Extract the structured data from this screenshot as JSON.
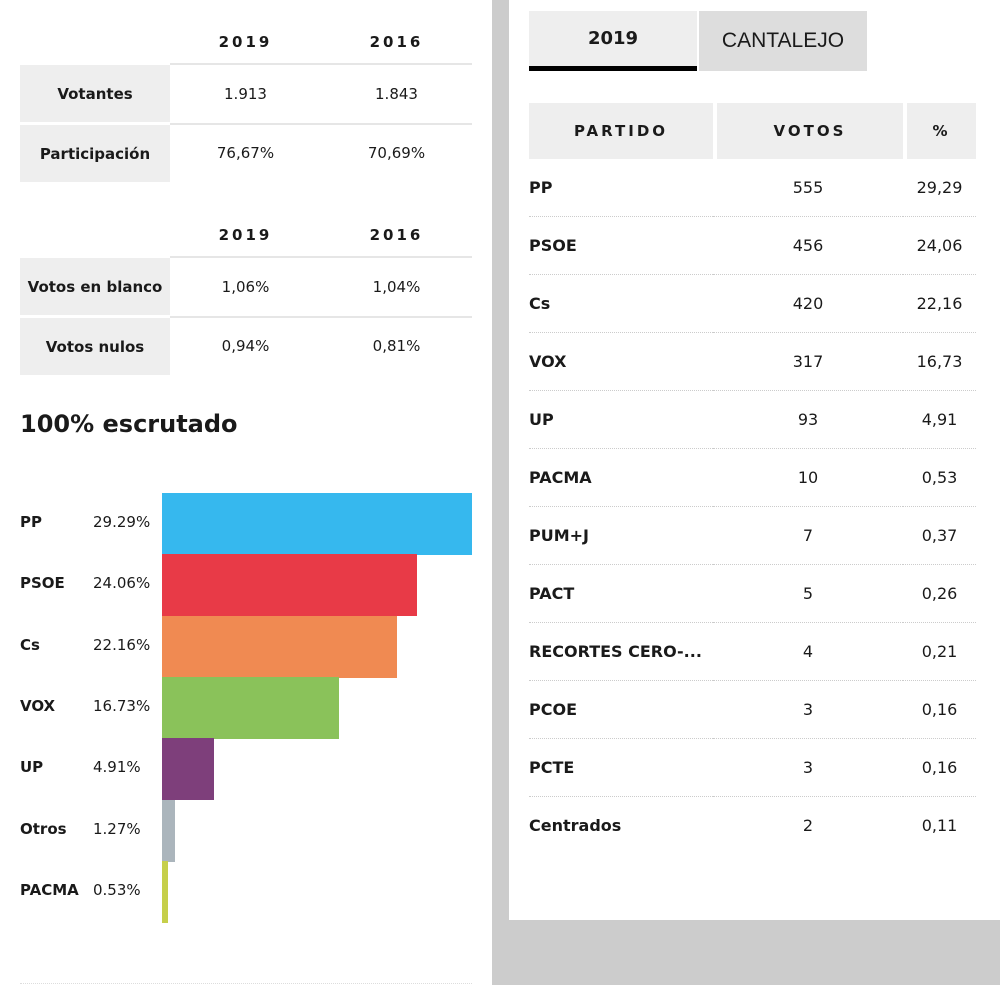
{
  "summary_table": {
    "headers": [
      "2019",
      "2016"
    ],
    "rows": [
      {
        "label": "Votantes",
        "v2019": "1.913",
        "v2016": "1.843"
      },
      {
        "label": "Participación",
        "v2019": "76,67%",
        "v2016": "70,69%"
      }
    ]
  },
  "blank_table": {
    "headers": [
      "2019",
      "2016"
    ],
    "rows": [
      {
        "label": "Votos en blanco",
        "v2019": "1,06%",
        "v2016": "1,04%"
      },
      {
        "label": "Votos nulos",
        "v2019": "0,94%",
        "v2016": "0,81%"
      }
    ]
  },
  "heading": "100% escrutado",
  "chart_data": {
    "type": "bar",
    "orientation": "horizontal",
    "title": "100% escrutado",
    "categories": [
      "PP",
      "PSOE",
      "Cs",
      "VOX",
      "UP",
      "Otros",
      "PACMA"
    ],
    "values": [
      29.29,
      24.06,
      22.16,
      16.73,
      4.91,
      1.27,
      0.53
    ],
    "value_labels": [
      "29.29%",
      "24.06%",
      "22.16%",
      "16.73%",
      "4.91%",
      "1.27%",
      "0.53%"
    ],
    "colors": [
      "#36b8ee",
      "#e83a47",
      "#f08a52",
      "#8ac25a",
      "#7e3f7b",
      "#abb5bc",
      "#c6cf4a"
    ],
    "xlim": [
      0,
      29.29
    ]
  },
  "tabs": {
    "year": "2019",
    "place": "CANTALEJO"
  },
  "votes_table": {
    "headers": [
      "PARTIDO",
      "VOTOS",
      "%"
    ],
    "rows": [
      {
        "party": "PP",
        "votes": "555",
        "pct": "29,29"
      },
      {
        "party": "PSOE",
        "votes": "456",
        "pct": "24,06"
      },
      {
        "party": "Cs",
        "votes": "420",
        "pct": "22,16"
      },
      {
        "party": "VOX",
        "votes": "317",
        "pct": "16,73"
      },
      {
        "party": "UP",
        "votes": "93",
        "pct": "4,91"
      },
      {
        "party": "PACMA",
        "votes": "10",
        "pct": "0,53"
      },
      {
        "party": "PUM+J",
        "votes": "7",
        "pct": "0,37"
      },
      {
        "party": "PACT",
        "votes": "5",
        "pct": "0,26"
      },
      {
        "party": "RECORTES CERO-...",
        "votes": "4",
        "pct": "0,21"
      },
      {
        "party": "PCOE",
        "votes": "3",
        "pct": "0,16"
      },
      {
        "party": "PCTE",
        "votes": "3",
        "pct": "0,16"
      },
      {
        "party": "Centrados",
        "votes": "2",
        "pct": "0,11"
      }
    ]
  }
}
